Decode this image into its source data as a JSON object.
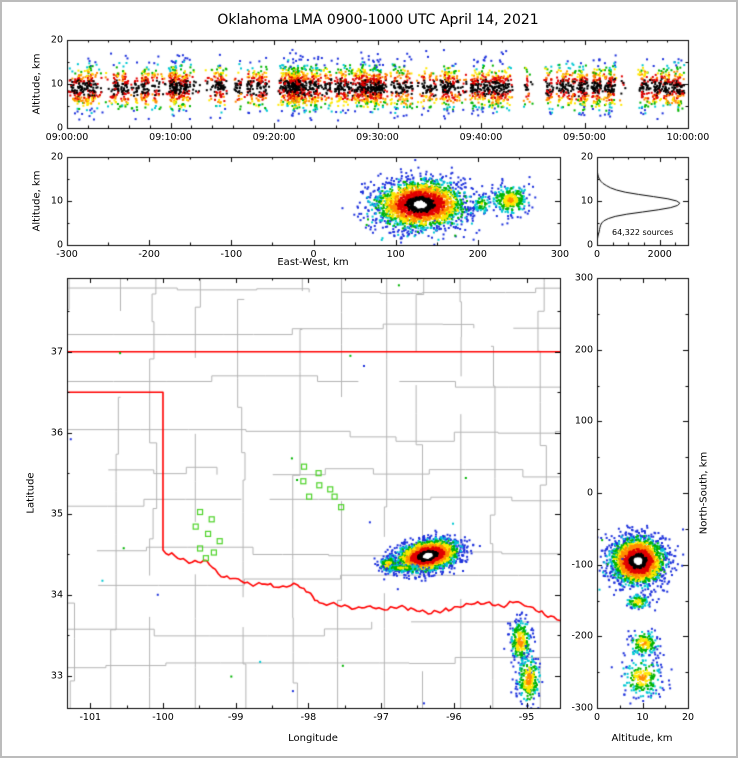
{
  "title": "Oklahoma LMA 0900-1000 UTC April 14, 2021",
  "panels": {
    "time_height": {
      "ylabel": "Altitude, km",
      "ytick_labels": [
        "0",
        "10",
        "20"
      ],
      "xtick_labels": [
        "09:00:00",
        "09:10:00",
        "09:20:00",
        "09:30:00",
        "09:40:00",
        "09:50:00",
        "10:00:00"
      ]
    },
    "east_west": {
      "ylabel": "Altitude, km",
      "xlabel": "East-West, km",
      "ytick_labels": [
        "0",
        "10",
        "20"
      ],
      "xtick_labels": [
        "-300",
        "-200",
        "-100",
        "0",
        "100",
        "200",
        "300"
      ]
    },
    "histogram": {
      "annotation": "64,322 sources",
      "ytick_labels": [
        "0",
        "10",
        "20"
      ],
      "xtick_labels": [
        "0",
        "2000"
      ]
    },
    "map": {
      "ylabel": "Latitude",
      "xlabel": "Longitude",
      "ytick_labels": [
        "33",
        "34",
        "35",
        "36",
        "37"
      ],
      "xtick_labels": [
        "-101",
        "-100",
        "-99",
        "-98",
        "-97",
        "-96",
        "-95"
      ]
    },
    "north_south": {
      "ylabel": "North-South, km",
      "xlabel": "Altitude, km",
      "ytick_labels": [
        "-300",
        "-200",
        "-100",
        "0",
        "100",
        "200",
        "300"
      ],
      "xtick_labels": [
        "0",
        "10",
        "20"
      ]
    }
  },
  "chart_data": [
    {
      "name": "vhf-sources-time-height",
      "type": "scatter",
      "panel": "time_height",
      "xlabel": "Time (UTC)",
      "ylabel": "Altitude, km",
      "xlim": [
        "09:00:00",
        "10:00:00"
      ],
      "ylim": [
        0,
        20
      ],
      "summary": "Dense columns of VHF lightning sources throughout 0900-1000 UTC, concentrated 5-15 km altitude, density colored blue-green-yellow-red-black from low to high",
      "generator": {
        "columns": 155,
        "points_min": 8,
        "points_max": 50,
        "alt_mean_km": 9.2,
        "alt_sigma_km": 2.6,
        "alt_min_km": 1.5,
        "alt_max_km": 18.5,
        "column_halfwidth_s": 22
      }
    },
    {
      "name": "east-west-altitude",
      "type": "scatter",
      "panel": "east_west",
      "xlabel": "East-West, km",
      "ylabel": "Altitude, km",
      "xlim": [
        -300,
        300
      ],
      "ylim": [
        0,
        20
      ],
      "cluster_coords": "cx = east-west km, cy = altitude km",
      "clusters": [
        {
          "cx": 130,
          "cy": 9.2,
          "sx": 27,
          "sy": 2.7,
          "n": 2600,
          "dmin": 0
        },
        {
          "cx": 240,
          "cy": 10.3,
          "sx": 11,
          "sy": 1.7,
          "n": 300,
          "dmin": 0.45
        },
        {
          "cx": 205,
          "cy": 9.5,
          "sx": 6,
          "sy": 1.2,
          "n": 70,
          "dmin": 0.6
        }
      ],
      "strays": {
        "n": 30,
        "xr": [
          60,
          200
        ],
        "yr": [
          0.5,
          6
        ]
      }
    },
    {
      "name": "altitude-source-histogram",
      "type": "line",
      "panel": "histogram",
      "annotation": "64,322 sources",
      "xlim": [
        0,
        2900
      ],
      "ylim": [
        0,
        20
      ],
      "xticks": [
        0,
        2000
      ],
      "profile": {
        "altitude_km": [
          0,
          0.5,
          1,
          1.5,
          2,
          2.5,
          3,
          3.5,
          4,
          4.5,
          5,
          5.5,
          6,
          6.5,
          7,
          7.5,
          8,
          8.5,
          9,
          9.5,
          10,
          10.5,
          11,
          11.5,
          12,
          12.5,
          13,
          13.5,
          14,
          14.5,
          15,
          15.5,
          16,
          16.5,
          17,
          17.5,
          18,
          19,
          20
        ],
        "counts": [
          0,
          4,
          10,
          18,
          30,
          45,
          70,
          80,
          95,
          115,
          150,
          220,
          360,
          580,
          950,
          1450,
          1950,
          2350,
          2570,
          2640,
          2540,
          2260,
          1800,
          1320,
          900,
          620,
          430,
          300,
          190,
          120,
          75,
          45,
          28,
          16,
          9,
          5,
          2,
          0,
          0
        ]
      }
    },
    {
      "name": "plan-view-map",
      "type": "scatter",
      "panel": "map",
      "xlabel": "Longitude",
      "ylabel": "Latitude",
      "xlim": [
        -101.32,
        -94.54
      ],
      "ylim": [
        32.6,
        37.91
      ],
      "county_line_color": "#b4b4b4",
      "state_border_color": "#ff0000",
      "station_marker_color": "#4fd32a",
      "lma_stations_lon_lat": [
        [
          -98.06,
          35.58
        ],
        [
          -97.86,
          35.5
        ],
        [
          -98.07,
          35.4
        ],
        [
          -97.7,
          35.3
        ],
        [
          -97.99,
          35.21
        ],
        [
          -97.64,
          35.21
        ],
        [
          -97.85,
          35.35
        ],
        [
          -97.55,
          35.08
        ],
        [
          -99.49,
          35.02
        ],
        [
          -99.33,
          34.93
        ],
        [
          -99.55,
          34.84
        ],
        [
          -99.38,
          34.75
        ],
        [
          -99.22,
          34.66
        ],
        [
          -99.49,
          34.57
        ],
        [
          -99.3,
          34.52
        ],
        [
          -99.41,
          34.45
        ]
      ],
      "state_border": {
        "kansas_border_lat": 37.0,
        "panhandle_south_lat": 36.5,
        "west_border_lon": -100.0,
        "red_river_lon_lat": [
          [
            -100.0,
            34.55
          ],
          [
            -99.8,
            34.45
          ],
          [
            -99.6,
            34.4
          ],
          [
            -99.4,
            34.42
          ],
          [
            -99.2,
            34.22
          ],
          [
            -99.0,
            34.2
          ],
          [
            -98.8,
            34.13
          ],
          [
            -98.6,
            34.13
          ],
          [
            -98.4,
            34.09
          ],
          [
            -98.15,
            34.12
          ],
          [
            -98.0,
            34.03
          ],
          [
            -97.85,
            33.9
          ],
          [
            -97.6,
            33.87
          ],
          [
            -97.35,
            33.83
          ],
          [
            -97.15,
            33.86
          ],
          [
            -96.95,
            33.81
          ],
          [
            -96.75,
            33.85
          ],
          [
            -96.55,
            33.82
          ],
          [
            -96.35,
            33.76
          ],
          [
            -96.15,
            33.8
          ],
          [
            -95.95,
            33.85
          ],
          [
            -95.75,
            33.88
          ],
          [
            -95.55,
            33.9
          ],
          [
            -95.35,
            33.86
          ],
          [
            -95.15,
            33.91
          ],
          [
            -94.95,
            33.85
          ],
          [
            -94.75,
            33.75
          ],
          [
            -94.54,
            33.68
          ]
        ]
      },
      "cluster_coords": "cx = longitude, cy = latitude",
      "clusters": [
        {
          "cx": -96.36,
          "cy": 34.48,
          "sx": 0.21,
          "sy": 0.09,
          "rot": 10,
          "n": 2600,
          "dmin": 0
        },
        {
          "cx": -96.9,
          "cy": 34.37,
          "sx": 0.07,
          "sy": 0.05,
          "n": 130,
          "dmin": 0.5
        },
        {
          "cx": -96.7,
          "cy": 34.33,
          "sx": 0.13,
          "sy": 0.02,
          "n": 130,
          "dmin": 0.55
        },
        {
          "cx": -95.08,
          "cy": 33.42,
          "sx": 0.07,
          "sy": 0.14,
          "n": 260,
          "dmin": 0.42
        },
        {
          "cx": -94.97,
          "cy": 32.95,
          "sx": 0.08,
          "sy": 0.15,
          "n": 280,
          "dmin": 0.42
        }
      ],
      "stray_points": 18
    },
    {
      "name": "altitude-north-south",
      "type": "scatter",
      "panel": "north_south",
      "xlabel": "Altitude, km",
      "ylabel": "North-South, km",
      "xlim": [
        0,
        20
      ],
      "ylim": [
        -300,
        300
      ],
      "cluster_coords": "cx = altitude km, cy = north-south km",
      "clusters": [
        {
          "cx": 9.0,
          "cy": -95,
          "sx": 2.9,
          "sy": 16,
          "n": 2600,
          "dmin": 0
        },
        {
          "cx": 9.0,
          "cy": -152,
          "sx": 1.4,
          "sy": 5,
          "n": 110,
          "dmin": 0.5
        },
        {
          "cx": 10.3,
          "cy": -210,
          "sx": 1.6,
          "sy": 9,
          "n": 170,
          "dmin": 0.45
        },
        {
          "cx": 10.0,
          "cy": -258,
          "sx": 2.1,
          "sy": 14,
          "n": 230,
          "dmin": 0.45
        }
      ],
      "strays": {
        "n": 30,
        "xr": [
          0.5,
          6
        ],
        "yr": [
          -140,
          -60
        ]
      }
    }
  ]
}
